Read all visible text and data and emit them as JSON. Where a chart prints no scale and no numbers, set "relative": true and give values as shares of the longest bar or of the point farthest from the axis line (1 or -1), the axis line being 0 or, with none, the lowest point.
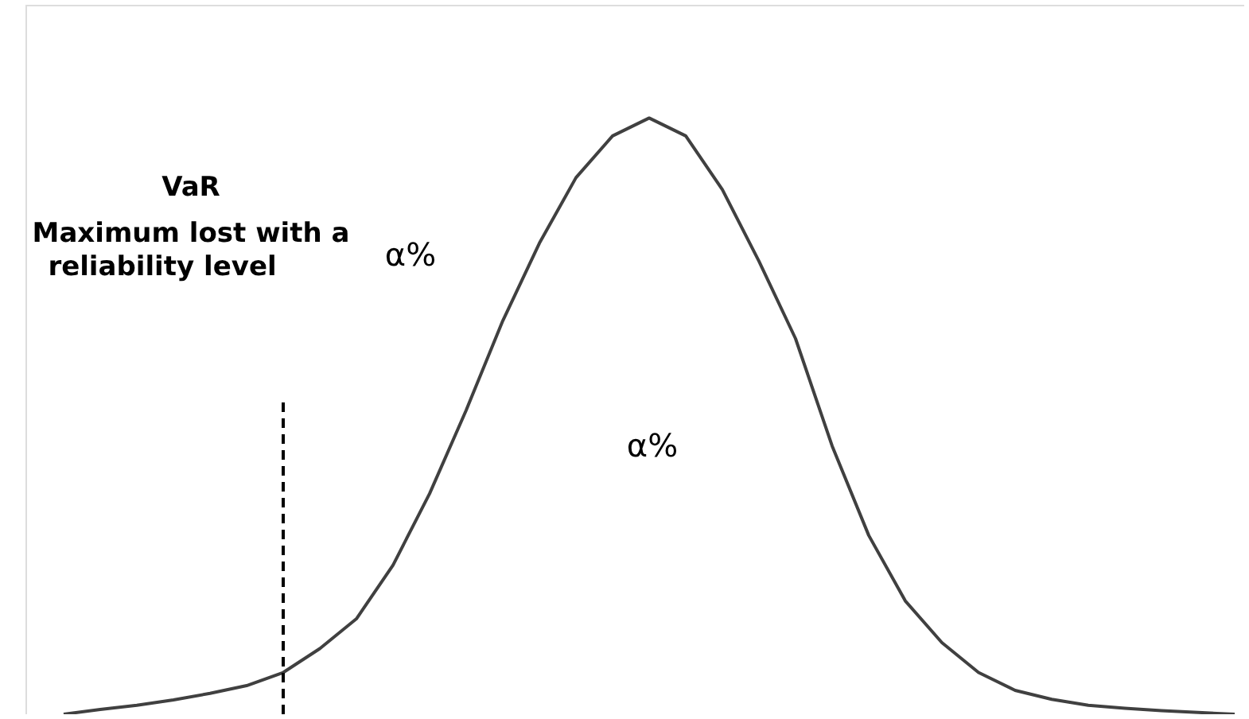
{
  "chart_data": {
    "type": "line",
    "relative": true,
    "grid": false,
    "marker": "none",
    "line_style": "solid",
    "categories": [
      null,
      null,
      null,
      null,
      null,
      null,
      null,
      null,
      null,
      null,
      null,
      null,
      null,
      null,
      null,
      null,
      null,
      null,
      null,
      null,
      null,
      null,
      null,
      null,
      null,
      null,
      null,
      null,
      null,
      null,
      null,
      null,
      null
    ],
    "series": [
      {
        "color": "#404040",
        "values": [
          0,
          0.008,
          0.015,
          0.024,
          0.035,
          0.048,
          0.07,
          0.11,
          0.16,
          0.25,
          0.37,
          0.51,
          0.66,
          0.79,
          0.9,
          0.97,
          1,
          0.97,
          0.88,
          0.76,
          0.63,
          0.45,
          0.3,
          0.19,
          0.12,
          0.07,
          0.04,
          0.025,
          0.015,
          0.01,
          0.006,
          0.003,
          0
        ]
      }
    ],
    "annotations": [
      "VaR",
      "Maximum lost with a",
      "reliability level",
      "α%",
      "α%"
    ]
  }
}
